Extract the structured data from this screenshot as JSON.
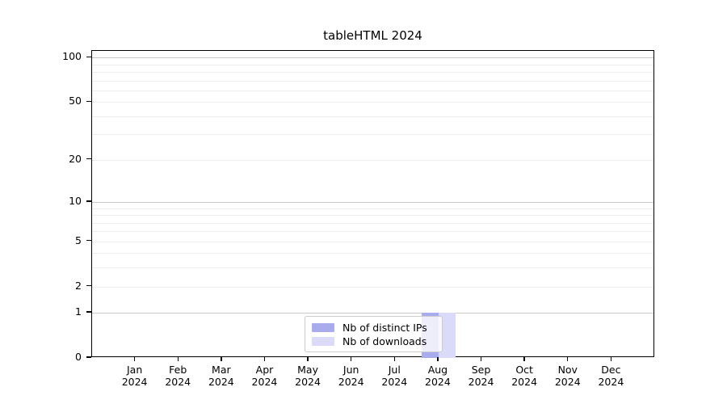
{
  "chart_data": {
    "type": "bar",
    "title": "tableHTML 2024",
    "year_label": "2024",
    "categories": [
      "Jan",
      "Feb",
      "Mar",
      "Apr",
      "May",
      "Jun",
      "Jul",
      "Aug",
      "Sep",
      "Oct",
      "Nov",
      "Dec"
    ],
    "series": [
      {
        "name": "Nb of distinct IPs",
        "color": "#a8abec",
        "values": [
          0,
          0,
          0,
          0,
          0,
          0,
          0,
          1,
          0,
          0,
          0,
          0
        ]
      },
      {
        "name": "Nb of downloads",
        "color": "#d9dbf8",
        "values": [
          0,
          0,
          0,
          0,
          0,
          0,
          0,
          1,
          0,
          0,
          0,
          0
        ]
      }
    ],
    "yscale": "log1p",
    "ylim": [
      0,
      112
    ],
    "yticks": [
      100,
      50,
      20,
      10,
      5,
      2,
      1,
      0
    ],
    "grid_minor_values": [
      2,
      3,
      4,
      5,
      6,
      7,
      8,
      9,
      20,
      30,
      40,
      50,
      60,
      70,
      80,
      90
    ],
    "grid_major_values": [
      1,
      10,
      100
    ],
    "legend_position": "lower center",
    "xlabel": "",
    "ylabel": ""
  },
  "colors": {
    "bar_distinct_ips": "#a8abec",
    "bar_downloads": "#d9dbf8",
    "grid_minor": "#ededed",
    "grid_major": "#c9c9c9",
    "frame": "#000000",
    "legend_border": "#cccccc"
  }
}
